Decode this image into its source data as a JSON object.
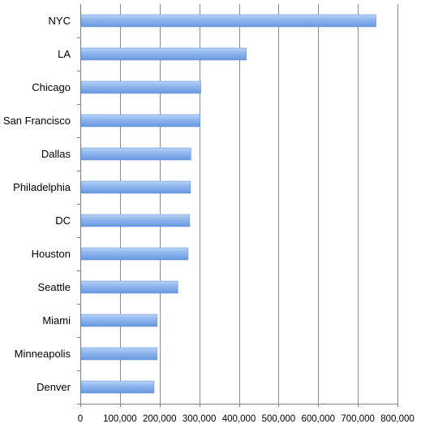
{
  "chart_data": {
    "type": "bar",
    "orientation": "horizontal",
    "title": "",
    "xlabel": "",
    "ylabel": "",
    "categories": [
      "NYC",
      "LA",
      "Chicago",
      "San Francisco",
      "Dallas",
      "Philadelphia",
      "DC",
      "Houston",
      "Seattle",
      "Miami",
      "Minneapolis",
      "Denver"
    ],
    "values": [
      746000,
      419000,
      304000,
      302000,
      279000,
      278000,
      276000,
      272000,
      246000,
      194000,
      194000,
      186000
    ],
    "xlim": [
      0,
      800000
    ],
    "ticks": [
      0,
      100000,
      200000,
      300000,
      400000,
      500000,
      600000,
      700000,
      800000
    ],
    "tick_labels": [
      "0",
      "100,000",
      "200,000",
      "300,000",
      "400,000",
      "500,000",
      "600,000",
      "700,000",
      "800,000"
    ],
    "grid": true,
    "legend": "none",
    "bar_color": "#8cb4ee"
  }
}
